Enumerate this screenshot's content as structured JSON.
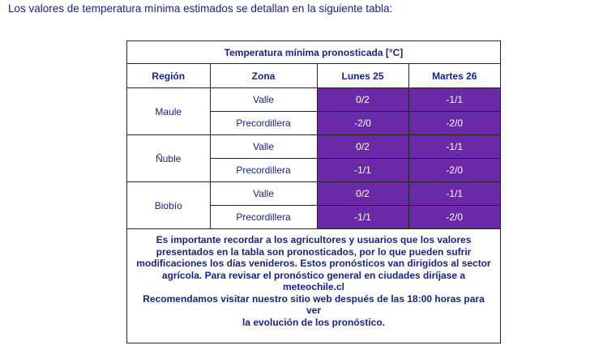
{
  "intro_text": "Los valores de temperatura mínima estimados se detallan en la siguiente tabla:",
  "table": {
    "title": "Temperatura mínima pronosticada [°C]",
    "headers": [
      "Región",
      "Zona",
      "Lunes 25",
      "Martes 26"
    ],
    "regions": [
      {
        "name": "Maule",
        "rows": [
          {
            "zona": "Valle",
            "lunes": "0/2",
            "martes": "-1/1"
          },
          {
            "zona": "Precordillera",
            "lunes": "-2/0",
            "martes": "-2/0"
          }
        ]
      },
      {
        "name": "Ñuble",
        "rows": [
          {
            "zona": "Valle",
            "lunes": "0/2",
            "martes": "-1/1"
          },
          {
            "zona": "Precordillera",
            "lunes": "-1/1",
            "martes": "-2/0"
          }
        ]
      },
      {
        "name": "Biobío",
        "rows": [
          {
            "zona": "Valle",
            "lunes": "0/2",
            "martes": "-1/1"
          },
          {
            "zona": "Precordillera",
            "lunes": "-1/1",
            "martes": "-2/0"
          }
        ]
      }
    ],
    "notes": {
      "line1": "Es importante recordar a los agricultores y usuarios que los valores",
      "line2": "presentados en la tabla son pronosticados, por lo que pueden sufrir",
      "line3": "modificaciones los días venideros. Estos pronósticos van dirigidos al sector",
      "line4": "agrícola. Para revisar el pronóstico general en ciudades diríjase a",
      "line5": "meteochile.cl",
      "line6": "Recomendamos visitar nuestro sitio web después de las 18:00 horas para ver",
      "line7": "la evolución de los pronóstico."
    }
  },
  "colors": {
    "text": "#1a237e",
    "value_cell_bg": "#6a2aa8",
    "value_cell_text": "#ffffff"
  }
}
